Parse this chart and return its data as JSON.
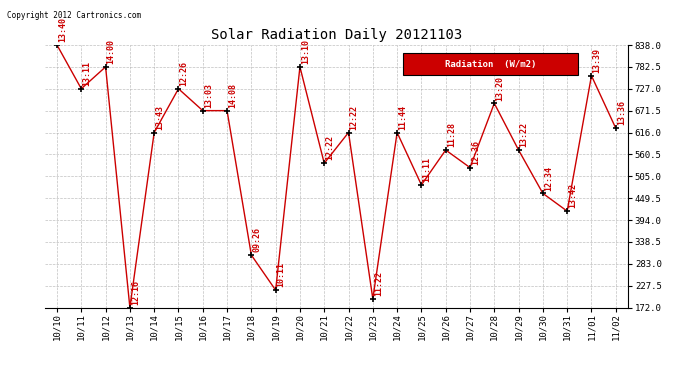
{
  "title": "Solar Radiation Daily 20121103",
  "copyright": "Copyright 2012 Cartronics.com",
  "legend_label": "Radiation  (W/m2)",
  "background_color": "#ffffff",
  "plot_bg_color": "#ffffff",
  "grid_color": "#b0b0b0",
  "line_color": "#cc0000",
  "marker_color": "#000000",
  "label_color": "#cc0000",
  "x_labels": [
    "10/10",
    "10/11",
    "10/12",
    "10/13",
    "10/14",
    "10/15",
    "10/16",
    "10/17",
    "10/18",
    "10/19",
    "10/20",
    "10/21",
    "10/22",
    "10/23",
    "10/24",
    "10/25",
    "10/26",
    "10/27",
    "10/28",
    "10/29",
    "10/30",
    "10/31",
    "11/01",
    "11/02"
  ],
  "y_values": [
    838.0,
    727.0,
    782.5,
    172.0,
    616.0,
    727.0,
    671.5,
    671.5,
    305.0,
    216.0,
    782.5,
    538.0,
    616.0,
    194.0,
    616.0,
    483.0,
    571.5,
    527.0,
    690.0,
    571.5,
    461.5,
    416.5,
    760.0,
    627.0
  ],
  "point_labels": [
    "13:40",
    "13:11",
    "14:00",
    "12:16",
    "13:43",
    "12:26",
    "13:03",
    "14:08",
    "09:26",
    "10:11",
    "13:10",
    "12:22",
    "12:22",
    "11:22",
    "11:44",
    "11:11",
    "11:28",
    "12:36",
    "13:20",
    "13:22",
    "12:34",
    "13:42",
    "13:39",
    "13:36"
  ],
  "ylim_min": 172.0,
  "ylim_max": 838.0,
  "ytick_values": [
    172.0,
    227.5,
    283.0,
    338.5,
    394.0,
    449.5,
    505.0,
    560.5,
    616.0,
    671.5,
    727.0,
    782.5,
    838.0
  ],
  "legend_bg": "#cc0000",
  "legend_fg": "#ffffff"
}
